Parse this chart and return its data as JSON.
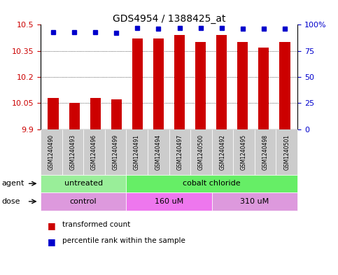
{
  "title": "GDS4954 / 1388425_at",
  "samples": [
    "GSM1240490",
    "GSM1240493",
    "GSM1240496",
    "GSM1240499",
    "GSM1240491",
    "GSM1240494",
    "GSM1240497",
    "GSM1240500",
    "GSM1240492",
    "GSM1240495",
    "GSM1240498",
    "GSM1240501"
  ],
  "bar_values": [
    10.08,
    10.05,
    10.08,
    10.07,
    10.42,
    10.42,
    10.44,
    10.4,
    10.44,
    10.4,
    10.37,
    10.4
  ],
  "percentile_values": [
    93,
    93,
    93,
    92,
    97,
    96,
    97,
    97,
    97,
    96,
    96,
    96
  ],
  "ymin": 9.9,
  "ymax": 10.5,
  "yticks": [
    9.9,
    10.05,
    10.2,
    10.35,
    10.5
  ],
  "ytick_labels": [
    "9.9",
    "10.05",
    "10.2",
    "10.35",
    "10.5"
  ],
  "right_yticks": [
    0,
    25,
    50,
    75,
    100
  ],
  "right_ytick_labels": [
    "0",
    "25",
    "50",
    "75",
    "100%"
  ],
  "bar_color": "#cc0000",
  "dot_color": "#0000cc",
  "bar_bottom": 9.9,
  "agent_groups": [
    {
      "label": "untreated",
      "start": 0,
      "end": 4,
      "color": "#99ee99"
    },
    {
      "label": "cobalt chloride",
      "start": 4,
      "end": 12,
      "color": "#66ee66"
    }
  ],
  "dose_groups": [
    {
      "label": "control",
      "start": 0,
      "end": 4,
      "color": "#dd99dd"
    },
    {
      "label": "160 uM",
      "start": 4,
      "end": 8,
      "color": "#ee77ee"
    },
    {
      "label": "310 uM",
      "start": 8,
      "end": 12,
      "color": "#dd99dd"
    }
  ],
  "legend_bar_label": "transformed count",
  "legend_dot_label": "percentile rank within the sample",
  "bg_color": "#ffffff",
  "plot_bg_color": "#ffffff",
  "sample_bg_color": "#cccccc",
  "agent_label": "agent",
  "dose_label": "dose"
}
